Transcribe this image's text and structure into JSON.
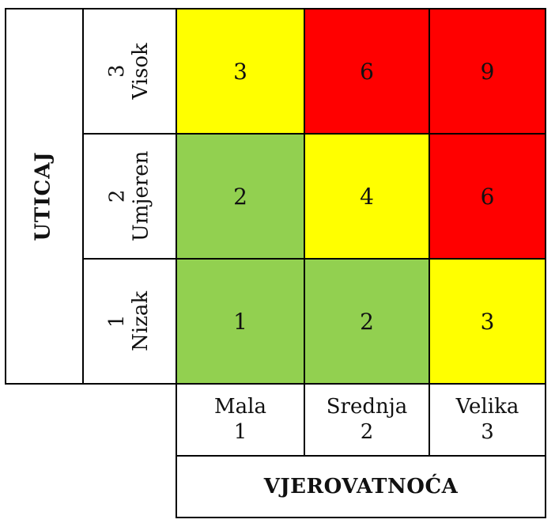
{
  "y_axis_title": "UTICAJ",
  "x_axis_title": "VJEROVATNOĆA",
  "rows": [
    {
      "name": "Visok",
      "level": "3"
    },
    {
      "name": "Umjeren",
      "level": "2"
    },
    {
      "name": "Nizak",
      "level": "1"
    }
  ],
  "columns": [
    {
      "name": "Mala",
      "level": "1"
    },
    {
      "name": "Srednja",
      "level": "2"
    },
    {
      "name": "Velika",
      "level": "3"
    }
  ],
  "cells": [
    [
      "3",
      "6",
      "9"
    ],
    [
      "2",
      "4",
      "6"
    ],
    [
      "1",
      "2",
      "3"
    ]
  ],
  "colors": {
    "green": "#92d050",
    "yellow": "#ffff00",
    "red": "#ff0000"
  },
  "cell_colors": [
    [
      "yellow",
      "red",
      "red"
    ],
    [
      "green",
      "yellow",
      "red"
    ],
    [
      "green",
      "green",
      "yellow"
    ]
  ]
}
